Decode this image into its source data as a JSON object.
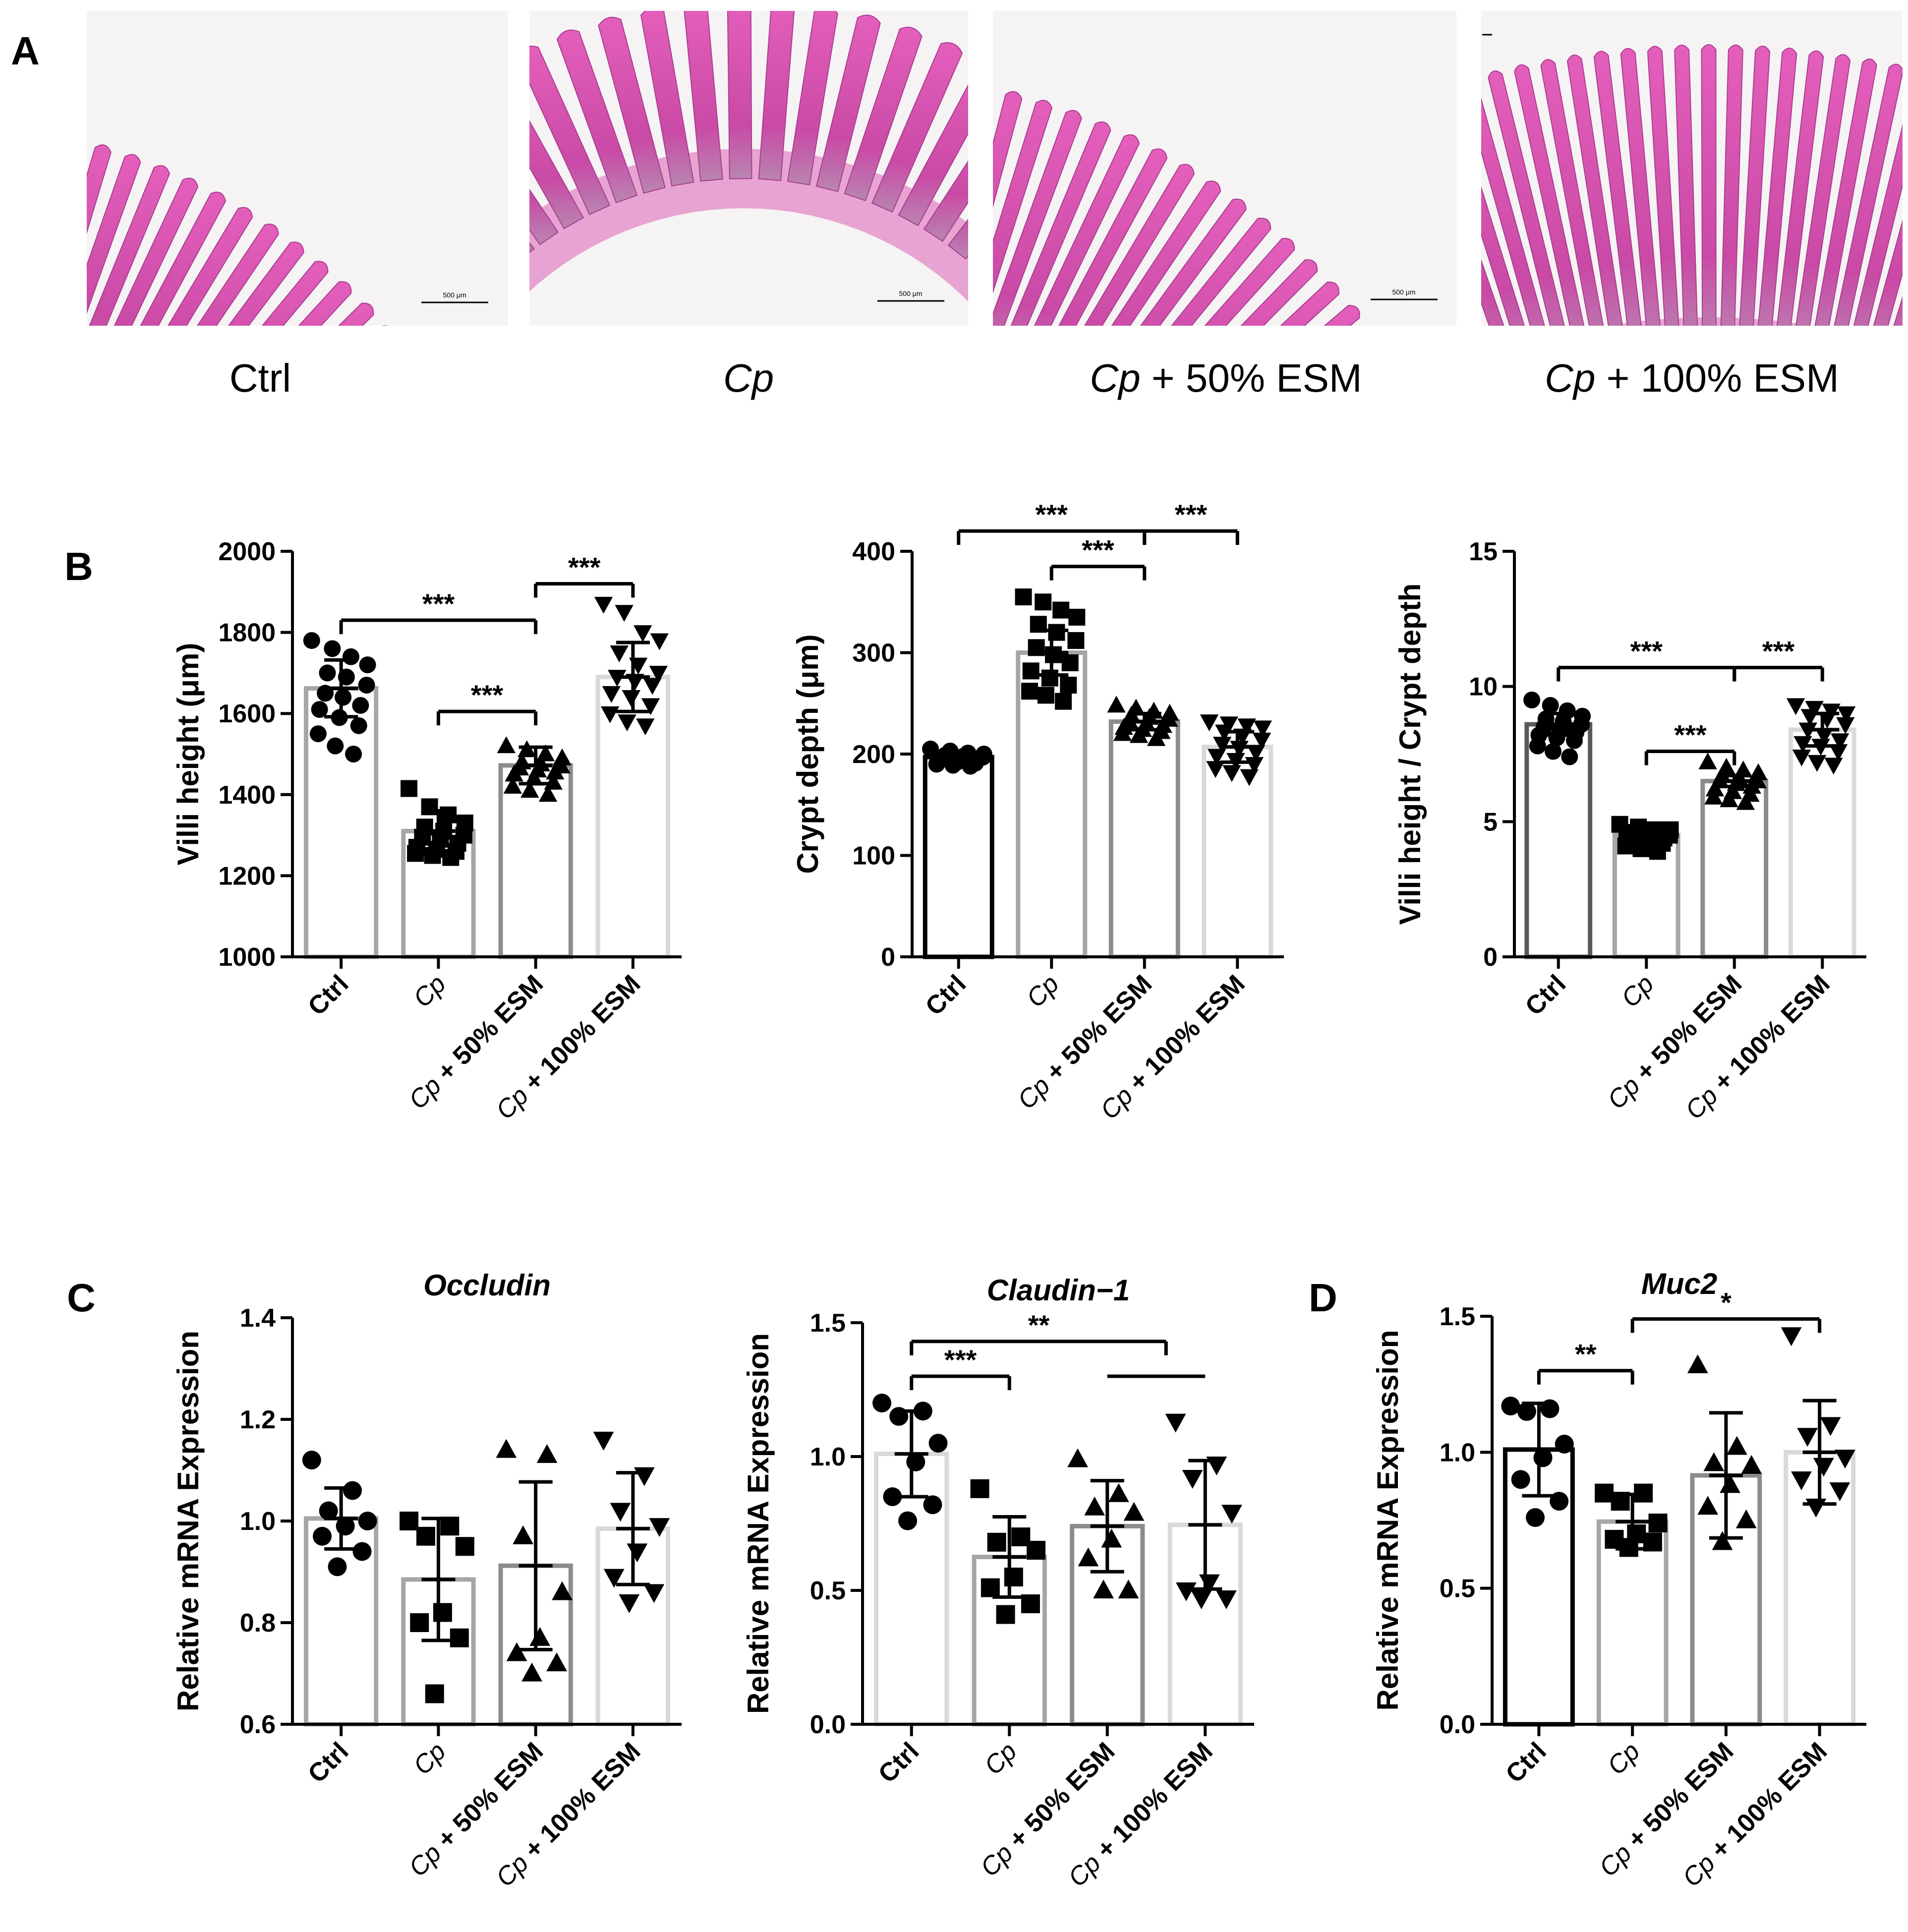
{
  "panels": {
    "a": "A",
    "b": "B",
    "c": "C",
    "d": "D"
  },
  "histology": {
    "scale_bar_label": "500 μm",
    "images": [
      {
        "name": "histology-ctrl",
        "caption": "Ctrl",
        "scale_bar": true
      },
      {
        "name": "histology-cp",
        "caption": "Cp",
        "scale_bar": true
      },
      {
        "name": "histology-cp-50-esm",
        "caption": "Cp + 50% ESM",
        "scale_bar": true
      },
      {
        "name": "histology-cp-100-esm",
        "caption": "Cp + 100% ESM",
        "scale_bar": false
      }
    ],
    "tissue_color": "#d94fae"
  },
  "groups": [
    "Ctrl",
    "Cp",
    "Cp + 50% ESM",
    "Cp + 100% ESM"
  ],
  "chart_data": [
    {
      "id": "villi",
      "panel": "B",
      "type": "bar",
      "title": "",
      "xlabel": "",
      "ylabel": "Villi height (μm)",
      "categories": [
        "Ctrl",
        "Cp",
        "Cp + 50% ESM",
        "Cp + 100% ESM"
      ],
      "values": [
        1662,
        1310,
        1472,
        1690
      ],
      "sd": [
        70,
        50,
        45,
        85
      ],
      "ylim": [
        1000,
        2000
      ],
      "yticks": [
        1000,
        1200,
        1400,
        1600,
        1800,
        2000
      ],
      "points": [
        [
          1780,
          1760,
          1740,
          1720,
          1700,
          1690,
          1670,
          1650,
          1640,
          1620,
          1610,
          1590,
          1570,
          1550,
          1520,
          1500
        ],
        [
          1415,
          1370,
          1350,
          1330,
          1320,
          1310,
          1300,
          1295,
          1290,
          1280,
          1270,
          1265,
          1260,
          1255,
          1250,
          1245
        ],
        [
          1520,
          1510,
          1500,
          1490,
          1480,
          1475,
          1470,
          1465,
          1460,
          1455,
          1450,
          1440,
          1430,
          1420,
          1410,
          1400
        ],
        [
          1870,
          1850,
          1800,
          1780,
          1750,
          1720,
          1700,
          1690,
          1680,
          1670,
          1650,
          1640,
          1620,
          1600,
          1580,
          1570
        ]
      ],
      "markers": [
        "circle",
        "square",
        "triangle-up",
        "triangle-down"
      ],
      "bar_colors": [
        "#a6a6a6",
        "#a6a6a6",
        "#8c8c8c",
        "#d9d9d9"
      ],
      "significance": [
        {
          "from": 0,
          "to": 2,
          "label": "***",
          "y": 1830
        },
        {
          "from": 2,
          "to": 3,
          "label": "***",
          "y": 1920
        },
        {
          "from": 1,
          "to": 2,
          "label": "***",
          "y": 1605
        }
      ]
    },
    {
      "id": "crypt",
      "panel": "B",
      "type": "bar",
      "title": "",
      "xlabel": "",
      "ylabel": "Crypt depth (μm)",
      "categories": [
        "Ctrl",
        "Cp",
        "Cp + 50% ESM",
        "Cp + 100% ESM"
      ],
      "values": [
        197,
        300,
        232,
        207
      ],
      "sd": [
        5,
        22,
        8,
        15
      ],
      "ylim": [
        0,
        400
      ],
      "yticks": [
        0,
        100,
        200,
        300,
        400
      ],
      "points": [
        [
          205,
          203,
          201,
          200,
          199,
          198,
          197,
          196,
          195,
          194,
          193,
          192,
          191,
          190,
          189,
          188
        ],
        [
          355,
          350,
          342,
          335,
          328,
          320,
          312,
          305,
          298,
          290,
          282,
          275,
          268,
          262,
          258,
          252
        ],
        [
          248,
          245,
          242,
          240,
          238,
          236,
          234,
          232,
          230,
          228,
          226,
          224,
          222,
          220,
          218,
          215
        ],
        [
          232,
          230,
          228,
          226,
          222,
          218,
          214,
          210,
          206,
          202,
          198,
          194,
          190,
          186,
          182,
          178
        ]
      ],
      "markers": [
        "circle",
        "square",
        "triangle-up",
        "triangle-down"
      ],
      "bar_colors": [
        "#000000",
        "#a6a6a6",
        "#8c8c8c",
        "#d9d9d9"
      ],
      "significance": [
        {
          "from": 0,
          "to": 2,
          "label": "***",
          "y": 420
        },
        {
          "from": 2,
          "to": 3,
          "label": "***",
          "y": 420
        },
        {
          "from": 1,
          "to": 2,
          "label": "***",
          "y": 385
        }
      ]
    },
    {
      "id": "ratio",
      "panel": "B",
      "type": "bar",
      "title": "",
      "xlabel": "",
      "ylabel": "Villi height / Crypt depth",
      "categories": [
        "Ctrl",
        "Cp",
        "Cp + 50% ESM",
        "Cp + 100% ESM"
      ],
      "values": [
        8.6,
        4.5,
        6.5,
        8.4
      ],
      "sd": [
        0.4,
        0.2,
        0.2,
        0.6
      ],
      "ylim": [
        0,
        15
      ],
      "yticks": [
        0,
        5,
        10,
        15
      ],
      "points": [
        [
          9.5,
          9.3,
          9.1,
          8.9,
          8.8,
          8.7,
          8.6,
          8.5,
          8.4,
          8.3,
          8.2,
          8.1,
          8.0,
          7.8,
          7.6,
          7.4
        ],
        [
          4.9,
          4.8,
          4.7,
          4.7,
          4.6,
          4.6,
          4.5,
          4.5,
          4.4,
          4.4,
          4.3,
          4.3,
          4.2,
          4.1,
          4.0,
          3.9
        ],
        [
          7.2,
          7.0,
          6.9,
          6.8,
          6.7,
          6.6,
          6.5,
          6.5,
          6.4,
          6.3,
          6.2,
          6.1,
          6.0,
          5.9,
          5.8,
          5.7
        ],
        [
          9.3,
          9.2,
          9.1,
          9.0,
          8.9,
          8.8,
          8.6,
          8.4,
          8.2,
          8.0,
          7.9,
          7.8,
          7.6,
          7.4,
          7.2,
          7.1
        ]
      ],
      "markers": [
        "circle",
        "square",
        "triangle-up",
        "triangle-down"
      ],
      "bar_colors": [
        "#595959",
        "#a6a6a6",
        "#8c8c8c",
        "#d9d9d9"
      ],
      "significance": [
        {
          "from": 0,
          "to": 2,
          "label": "***",
          "y": 10.7
        },
        {
          "from": 2,
          "to": 3,
          "label": "***",
          "y": 10.7
        },
        {
          "from": 1,
          "to": 2,
          "label": "***",
          "y": 7.6
        }
      ]
    },
    {
      "id": "occludin",
      "panel": "C",
      "type": "bar",
      "title": "Occludin",
      "xlabel": "",
      "ylabel": "Relative mRNA Expression",
      "categories": [
        "Ctrl",
        "Cp",
        "Cp + 50% ESM",
        "Cp + 100% ESM"
      ],
      "values": [
        1.005,
        0.885,
        0.912,
        0.985
      ],
      "sd": [
        0.06,
        0.12,
        0.165,
        0.11
      ],
      "ylim": [
        0.6,
        1.4
      ],
      "yticks": [
        0.6,
        0.8,
        1.0,
        1.2,
        1.4
      ],
      "points": [
        [
          1.12,
          1.06,
          1.02,
          1.0,
          0.99,
          0.97,
          0.94,
          0.91
        ],
        [
          1.0,
          0.99,
          0.97,
          0.95,
          0.82,
          0.8,
          0.77,
          0.66
        ],
        [
          1.14,
          1.13,
          0.97,
          0.86,
          0.77,
          0.74,
          0.72,
          0.7
        ],
        [
          1.16,
          1.09,
          1.02,
          0.99,
          0.94,
          0.89,
          0.86,
          0.84
        ]
      ],
      "markers": [
        "circle",
        "square",
        "triangle-up",
        "triangle-down"
      ],
      "bar_colors": [
        "#a6a6a6",
        "#a6a6a6",
        "#8c8c8c",
        "#d9d9d9"
      ],
      "significance": []
    },
    {
      "id": "claudin",
      "panel": "C",
      "type": "bar",
      "title": "Claudin−1",
      "xlabel": "",
      "ylabel": "Relative mRNA Expression",
      "categories": [
        "Ctrl",
        "Cp",
        "Cp + 50% ESM",
        "Cp + 100% ESM"
      ],
      "values": [
        1.01,
        0.625,
        0.74,
        0.745
      ],
      "sd": [
        0.16,
        0.15,
        0.17,
        0.24
      ],
      "ylim": [
        0,
        1.5
      ],
      "yticks": [
        0.0,
        0.5,
        1.0,
        1.5
      ],
      "points": [
        [
          1.2,
          1.17,
          1.15,
          1.05,
          0.98,
          0.85,
          0.82,
          0.76
        ],
        [
          0.88,
          0.7,
          0.68,
          0.65,
          0.55,
          0.51,
          0.45,
          0.41
        ],
        [
          0.99,
          0.86,
          0.81,
          0.79,
          0.69,
          0.62,
          0.5,
          0.5
        ],
        [
          1.13,
          0.97,
          0.92,
          0.79,
          0.53,
          0.5,
          0.47,
          0.47
        ]
      ],
      "markers": [
        "circle",
        "square",
        "triangle-up",
        "triangle-down"
      ],
      "bar_colors": [
        "#d9d9d9",
        "#a6a6a6",
        "#8c8c8c",
        "#d9d9d9"
      ],
      "significance": [
        {
          "from": 0,
          "to": 2.6,
          "label": "**",
          "y": 1.43
        },
        {
          "from": 0,
          "to": 1,
          "label": "***",
          "y": 1.3
        },
        {
          "from": 2,
          "to": 3,
          "label": "",
          "y": 1.3
        }
      ]
    },
    {
      "id": "muc2",
      "panel": "D",
      "type": "bar",
      "title": "Muc2",
      "xlabel": "",
      "ylabel": "Relative mRNA Expression",
      "categories": [
        "Ctrl",
        "Cp",
        "Cp + 50% ESM",
        "Cp + 100% ESM"
      ],
      "values": [
        1.01,
        0.745,
        0.915,
        1.0
      ],
      "sd": [
        0.17,
        0.1,
        0.23,
        0.19
      ],
      "ylim": [
        0,
        1.5
      ],
      "yticks": [
        0.0,
        0.5,
        1.0,
        1.5
      ],
      "points": [
        [
          1.17,
          1.16,
          1.15,
          1.03,
          0.98,
          0.9,
          0.82,
          0.76
        ],
        [
          0.85,
          0.85,
          0.82,
          0.74,
          0.7,
          0.68,
          0.67,
          0.65
        ],
        [
          1.32,
          1.02,
          0.96,
          0.95,
          0.88,
          0.8,
          0.75,
          0.67
        ],
        [
          1.43,
          1.1,
          1.06,
          0.98,
          0.95,
          0.9,
          0.86,
          0.8
        ]
      ],
      "markers": [
        "circle",
        "square",
        "triangle-up",
        "triangle-down"
      ],
      "bar_colors": [
        "#000000",
        "#a6a6a6",
        "#8c8c8c",
        "#d9d9d9"
      ],
      "significance": [
        {
          "from": 1,
          "to": 3,
          "label": "*",
          "y": 1.49
        },
        {
          "from": 0,
          "to": 1,
          "label": "**",
          "y": 1.3
        }
      ]
    }
  ]
}
